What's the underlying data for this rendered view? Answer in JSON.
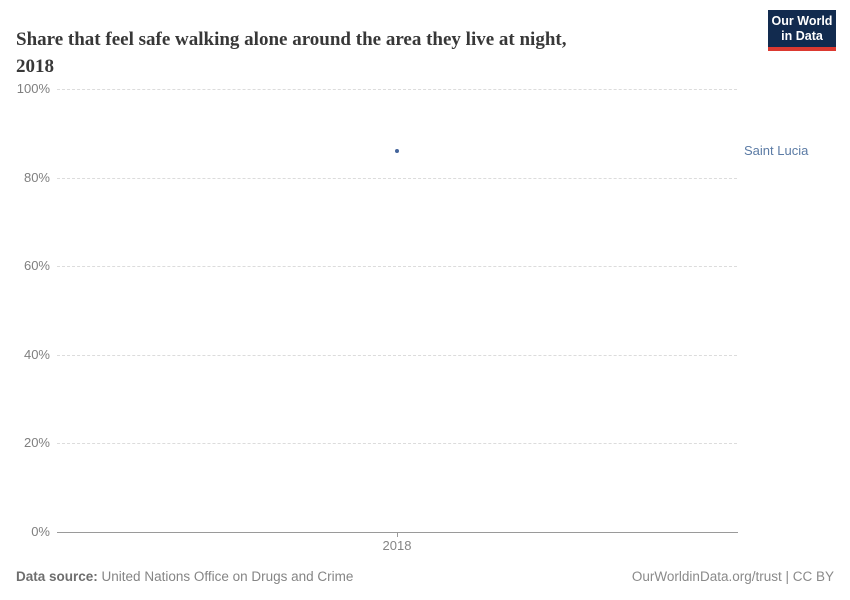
{
  "header": {
    "title_lines": [
      "Share that feel safe walking alone around the area they live at night,",
      "2018"
    ],
    "logo": {
      "line1": "Our World",
      "line2": "in Data",
      "bg_color": "#122b4f",
      "accent_color": "#dc3930"
    }
  },
  "chart_data": {
    "type": "scatter",
    "title": "Share that feel safe walking alone around the area they live at night, 2018",
    "x": [
      2018
    ],
    "x_labels": [
      "2018"
    ],
    "series": [
      {
        "name": "Saint Lucia",
        "values": [
          86
        ]
      }
    ],
    "ylim": [
      0,
      100
    ],
    "yticks": [
      0,
      20,
      40,
      60,
      80,
      100
    ],
    "ytick_suffix": "%",
    "grid": true,
    "gridline_style": "dashed",
    "point_color": "#44659c",
    "entity_label_color": "#5b7ba5",
    "legend_position": "right-of-point"
  },
  "footer": {
    "source_label": "Data source:",
    "source_text": "United Nations Office on Drugs and Crime",
    "attribution": "OurWorldinData.org/trust | CC BY"
  }
}
